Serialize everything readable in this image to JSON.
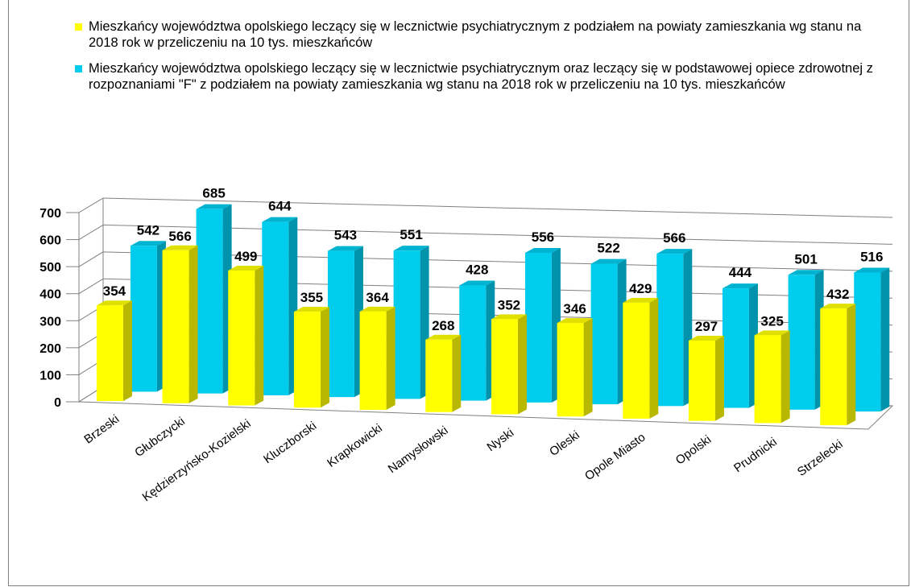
{
  "chart_data": {
    "type": "bar",
    "categories": [
      "Brzeski",
      "Głubczycki",
      "Kędzierzyńsko-Kozielski",
      "Kluczborski",
      "Krapkowicki",
      "Namysłowski",
      "Nyski",
      "Oleski",
      "Opole Miasto",
      "Opolski",
      "Prudnicki",
      "Strzelecki"
    ],
    "series": [
      {
        "name": "Mieszkańcy województwa opolskiego leczący się w lecznictwie psychiatrycznym z podziałem na powiaty zamieszkania wg stanu na 2018 rok w przeliczeniu na 10 tys. mieszkańców",
        "color": "#ffff00",
        "values": [
          354,
          566,
          499,
          355,
          364,
          268,
          352,
          346,
          429,
          297,
          325,
          432
        ]
      },
      {
        "name": "Mieszkańcy województwa opolskiego leczący się w lecznictwie psychiatrycznym oraz leczący się w podstawowej opiece zdrowotnej z rozpoznaniami \"F\"  z podziałem na powiaty zamieszkania wg stanu na 2018 rok w przeliczeniu na 10 tys. mieszkańców",
        "color": "#00ccee",
        "values": [
          542,
          685,
          644,
          543,
          551,
          428,
          556,
          522,
          566,
          444,
          501,
          516
        ]
      }
    ],
    "ylim": [
      0,
      700
    ],
    "yticks": [
      "0",
      "100",
      "200",
      "300",
      "400",
      "500",
      "600",
      "700"
    ],
    "grid": true,
    "legend_position": "top",
    "title": "",
    "xlabel": "",
    "ylabel": ""
  }
}
